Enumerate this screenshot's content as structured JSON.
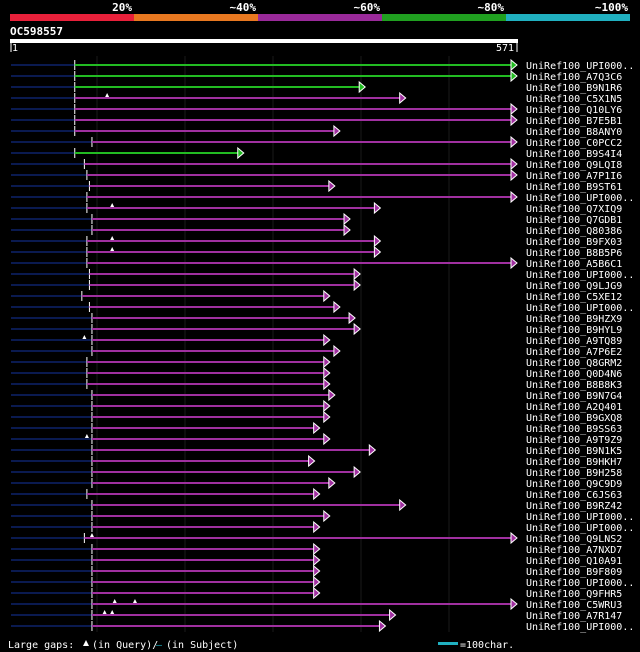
{
  "scale": {
    "labels": [
      "20%",
      "~40%",
      "~60%",
      "~80%",
      "~100%"
    ],
    "colors": [
      "#e8203a",
      "#e87820",
      "#9a2a9a",
      "#20a020",
      "#20b0c0"
    ]
  },
  "query": {
    "id": "OC598557",
    "start": "1",
    "end": "571",
    "length": 571
  },
  "hit_colors": {
    "high": "#22bb22",
    "mid": "#a030a0",
    "gap": "#ffffff",
    "low": "#0a1a50"
  },
  "hits": [
    {
      "name": "UniRef100_UPI000..",
      "start": 126,
      "end": 1000,
      "color": "green",
      "gaps": []
    },
    {
      "name": "UniRef100_A7Q3C6",
      "start": 126,
      "end": 1000,
      "color": "green",
      "gaps": []
    },
    {
      "name": "UniRef100_B9N1R6",
      "start": 126,
      "end": 700,
      "color": "green",
      "gaps": []
    },
    {
      "name": "UniRef100_C5X1N5",
      "start": 126,
      "end": 780,
      "color": "purple",
      "gaps": [
        190
      ]
    },
    {
      "name": "UniRef100_Q10LY6",
      "start": 126,
      "end": 1000,
      "color": "purple",
      "gaps": []
    },
    {
      "name": "UniRef100_B7E5B1",
      "start": 126,
      "end": 1000,
      "color": "purple",
      "gaps": []
    },
    {
      "name": "UniRef100_B8ANY0",
      "start": 126,
      "end": 650,
      "color": "purple",
      "gaps": []
    },
    {
      "name": "UniRef100_C0PCC2",
      "start": 160,
      "end": 1000,
      "color": "purple",
      "gaps": []
    },
    {
      "name": "UniRef100_B9S4I4",
      "start": 126,
      "end": 460,
      "color": "green",
      "gaps": []
    },
    {
      "name": "UniRef100_Q9LQI8",
      "start": 145,
      "end": 1000,
      "color": "purple",
      "gaps": []
    },
    {
      "name": "UniRef100_A7P1I6",
      "start": 150,
      "end": 1000,
      "color": "purple",
      "gaps": []
    },
    {
      "name": "UniRef100_B9ST61",
      "start": 155,
      "end": 640,
      "color": "purple",
      "gaps": []
    },
    {
      "name": "UniRef100_UPI000..",
      "start": 150,
      "end": 1000,
      "color": "purple",
      "gaps": []
    },
    {
      "name": "UniRef100_Q7XIQ9",
      "start": 150,
      "end": 730,
      "color": "purple",
      "gaps": [
        200
      ]
    },
    {
      "name": "UniRef100_Q7GDB1",
      "start": 160,
      "end": 670,
      "color": "purple",
      "gaps": []
    },
    {
      "name": "UniRef100_Q80386",
      "start": 160,
      "end": 670,
      "color": "purple",
      "gaps": []
    },
    {
      "name": "UniRef100_B9FX03",
      "start": 150,
      "end": 730,
      "color": "purple",
      "gaps": [
        200
      ]
    },
    {
      "name": "UniRef100_B8B5P6",
      "start": 150,
      "end": 730,
      "color": "purple",
      "gaps": [
        200
      ]
    },
    {
      "name": "UniRef100_A5B6C1",
      "start": 150,
      "end": 1000,
      "color": "purple",
      "gaps": []
    },
    {
      "name": "UniRef100_UPI000..",
      "start": 155,
      "end": 690,
      "color": "purple",
      "gaps": []
    },
    {
      "name": "UniRef100_Q9LJG9",
      "start": 155,
      "end": 690,
      "color": "purple",
      "gaps": []
    },
    {
      "name": "UniRef100_C5XE12",
      "start": 140,
      "end": 630,
      "color": "purple",
      "gaps": []
    },
    {
      "name": "UniRef100_UPI000..",
      "start": 155,
      "end": 650,
      "color": "purple",
      "gaps": []
    },
    {
      "name": "UniRef100_B9HZX9",
      "start": 160,
      "end": 680,
      "color": "purple",
      "gaps": []
    },
    {
      "name": "UniRef100_B9HYL9",
      "start": 160,
      "end": 690,
      "color": "purple",
      "gaps": []
    },
    {
      "name": "UniRef100_A9TQ89",
      "start": 160,
      "end": 630,
      "color": "purple",
      "gaps": [
        145
      ]
    },
    {
      "name": "UniRef100_A7P6E2",
      "start": 160,
      "end": 650,
      "color": "purple",
      "gaps": []
    },
    {
      "name": "UniRef100_Q8GRM2",
      "start": 150,
      "end": 630,
      "color": "purple",
      "gaps": []
    },
    {
      "name": "UniRef100_Q0D4N6",
      "start": 150,
      "end": 630,
      "color": "purple",
      "gaps": []
    },
    {
      "name": "UniRef100_B8B8K3",
      "start": 150,
      "end": 630,
      "color": "purple",
      "gaps": []
    },
    {
      "name": "UniRef100_B9N7G4",
      "start": 160,
      "end": 640,
      "color": "purple",
      "gaps": []
    },
    {
      "name": "UniRef100_A2Q401",
      "start": 160,
      "end": 630,
      "color": "purple",
      "gaps": []
    },
    {
      "name": "UniRef100_B9GXQ8",
      "start": 160,
      "end": 630,
      "color": "purple",
      "gaps": []
    },
    {
      "name": "UniRef100_B9SS63",
      "start": 160,
      "end": 610,
      "color": "purple",
      "gaps": []
    },
    {
      "name": "UniRef100_A9T9Z9",
      "start": 160,
      "end": 630,
      "color": "purple",
      "gaps": [
        150
      ]
    },
    {
      "name": "UniRef100_B9N1K5",
      "start": 160,
      "end": 720,
      "color": "purple",
      "gaps": []
    },
    {
      "name": "UniRef100_B9HKH7",
      "start": 160,
      "end": 600,
      "color": "purple",
      "gaps": []
    },
    {
      "name": "UniRef100_B9H258",
      "start": 160,
      "end": 690,
      "color": "purple",
      "gaps": []
    },
    {
      "name": "UniRef100_Q9C9D9",
      "start": 160,
      "end": 640,
      "color": "purple",
      "gaps": []
    },
    {
      "name": "UniRef100_C6JS63",
      "start": 150,
      "end": 610,
      "color": "purple",
      "gaps": []
    },
    {
      "name": "UniRef100_B9RZ42",
      "start": 160,
      "end": 780,
      "color": "purple",
      "gaps": []
    },
    {
      "name": "UniRef100_UPI000..",
      "start": 160,
      "end": 630,
      "color": "purple",
      "gaps": []
    },
    {
      "name": "UniRef100_UPI000..",
      "start": 160,
      "end": 610,
      "color": "purple",
      "gaps": []
    },
    {
      "name": "UniRef100_Q9LNS2",
      "start": 145,
      "end": 1000,
      "color": "purple",
      "gaps": [
        160
      ]
    },
    {
      "name": "UniRef100_A7NXD7",
      "start": 160,
      "end": 610,
      "color": "purple",
      "gaps": []
    },
    {
      "name": "UniRef100_Q10A91",
      "start": 160,
      "end": 610,
      "color": "purple",
      "gaps": []
    },
    {
      "name": "UniRef100_B9F809",
      "start": 160,
      "end": 610,
      "color": "purple",
      "gaps": []
    },
    {
      "name": "UniRef100_UPI000..",
      "start": 160,
      "end": 610,
      "color": "purple",
      "gaps": []
    },
    {
      "name": "UniRef100_Q9FHR5",
      "start": 160,
      "end": 610,
      "color": "purple",
      "gaps": []
    },
    {
      "name": "UniRef100_C5WRU3",
      "start": 160,
      "end": 1000,
      "color": "purple",
      "gaps": [
        205,
        245
      ]
    },
    {
      "name": "UniRef100_A7R147",
      "start": 160,
      "end": 760,
      "color": "purple",
      "gaps": [
        185,
        200
      ]
    },
    {
      "name": "UniRef100_UPI000..",
      "start": 160,
      "end": 740,
      "color": "purple",
      "gaps": []
    }
  ],
  "legend": {
    "large_gaps_label": "Large gaps:",
    "in_query_label": "(in Query)/",
    "dash_symbol": "—",
    "in_subject_label": "(in Subject)",
    "scale_label": "=100char."
  }
}
